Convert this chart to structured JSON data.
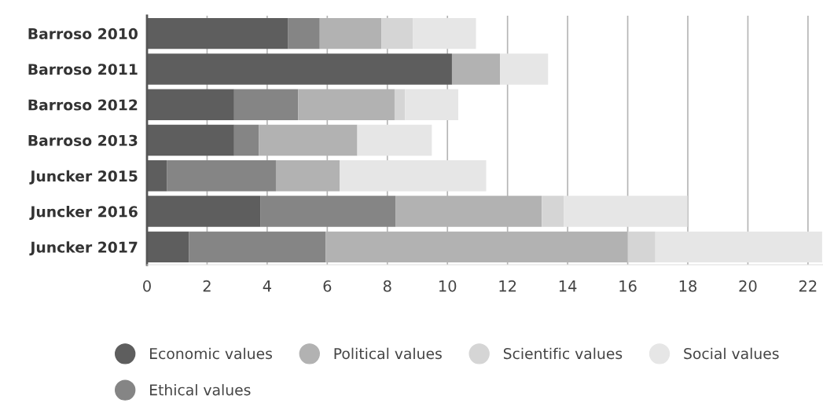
{
  "chart_data": {
    "type": "bar",
    "orientation": "horizontal",
    "stacked": true,
    "categories": [
      "Barroso 2010",
      "Barroso 2011",
      "Barroso 2012",
      "Barroso 2013",
      "Juncker 2015",
      "Juncker 2016",
      "Juncker 2017"
    ],
    "series": [
      {
        "name": "Economic values",
        "color": "#5e5e5e",
        "values": [
          4.7,
          10.15,
          2.9,
          2.9,
          0.67,
          3.77,
          1.4
        ]
      },
      {
        "name": "Ethical values",
        "color": "#858585",
        "values": [
          1.05,
          0,
          2.13,
          0.82,
          3.62,
          4.5,
          4.55
        ]
      },
      {
        "name": "Political values",
        "color": "#b2b2b2",
        "values": [
          2.05,
          1.6,
          3.21,
          3.28,
          2.12,
          4.87,
          10.05
        ]
      },
      {
        "name": "Scientific values",
        "color": "#d5d5d5",
        "values": [
          1.05,
          0,
          0.35,
          0,
          0,
          0.73,
          0.92
        ]
      },
      {
        "name": "Social values",
        "color": "#e6e6e6",
        "values": [
          2.1,
          1.6,
          1.77,
          2.48,
          4.88,
          4.12,
          5.55
        ]
      }
    ],
    "xlim": [
      0,
      22.5
    ],
    "xticks": [
      0,
      2,
      4,
      6,
      8,
      10,
      12,
      14,
      16,
      18,
      20,
      22
    ],
    "grid": "x",
    "legend": "bottom",
    "marker": "circle"
  }
}
